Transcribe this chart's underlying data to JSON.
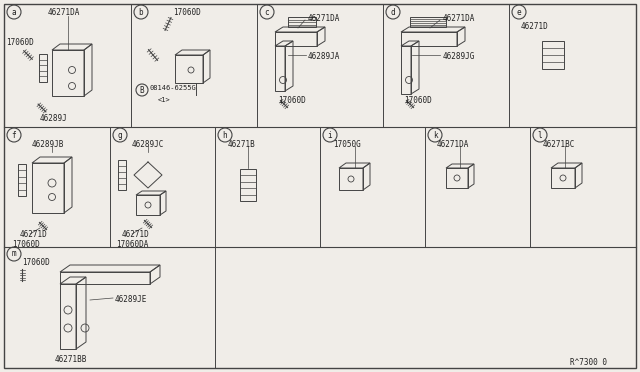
{
  "bg_color": "#f0ede8",
  "line_color": "#444444",
  "text_color": "#222222",
  "diagram_code": "R^7300 0",
  "ps": 5.5,
  "grid": {
    "border": [
      4,
      4,
      636,
      368
    ],
    "row_dividers": [
      127,
      247
    ],
    "col_dividers_row1": [
      131,
      257,
      383,
      509
    ],
    "col_dividers_row2": [
      110,
      215,
      320,
      425,
      530
    ],
    "col_divider_row3": [
      215
    ]
  }
}
